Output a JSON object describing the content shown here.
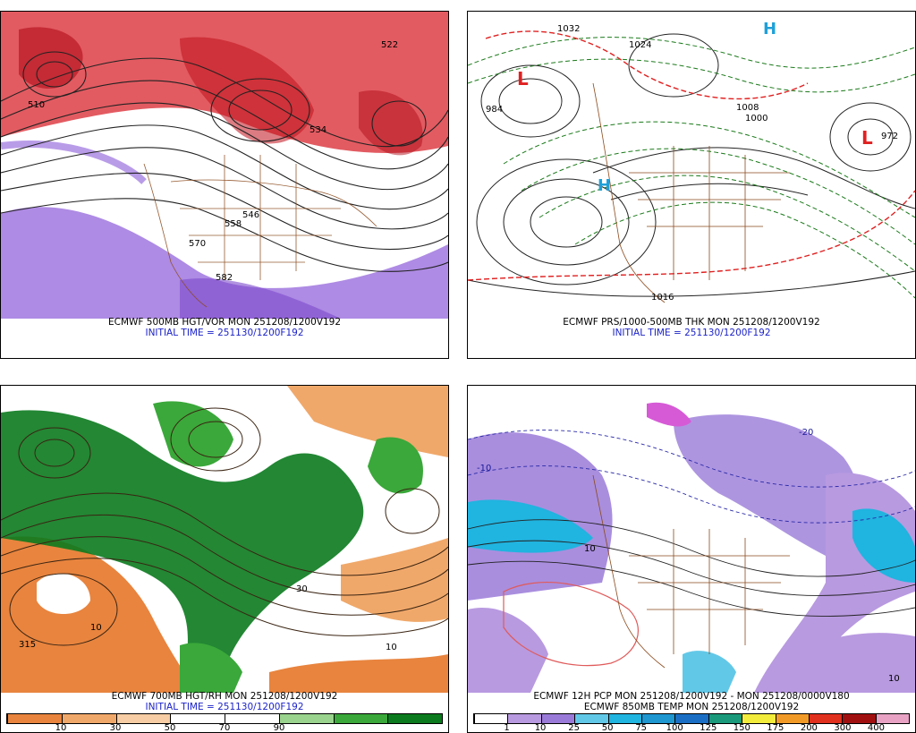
{
  "panels": [
    {
      "id": "500mb",
      "title": "ECMWF 500MB HGT/VOR MON 251208/1200V192",
      "subtitle": "INITIAL TIME = 251130/1200F192",
      "labels": [
        "510",
        "546",
        "558",
        "570",
        "582",
        "522",
        "534"
      ]
    },
    {
      "id": "prs",
      "title": "ECMWF PRS/1000-500MB THK MON 251208/1200V192",
      "subtitle": "INITIAL TIME = 251130/1200F192",
      "labels": [
        "1032",
        "1024",
        "1008",
        "1000",
        "984",
        "1016",
        "972",
        "L",
        "H"
      ]
    },
    {
      "id": "700mb",
      "title": "ECMWF 700MB HGT/RH MON 251208/1200V192",
      "subtitle": "INITIAL TIME = 251130/1200F192",
      "labels": [
        "315",
        "10",
        "10",
        "30"
      ],
      "colorbar": {
        "colors": [
          "#e8843e",
          "#f0a86a",
          "#f6cda4",
          "#ffffff",
          "#ffffff",
          "#9ad38e",
          "#3aa83a",
          "#0b7a1e"
        ],
        "ticks": [
          "10",
          "30",
          "50",
          "70",
          "90"
        ]
      }
    },
    {
      "id": "pcp",
      "title": "ECMWF 12H PCP MON 251208/1200V192 - MON 251208/0000V180",
      "subtitle": "ECMWF 850MB TEMP MON 251208/1200V192",
      "labels": [
        "-10",
        "10",
        "-20",
        "10"
      ],
      "colorbar": {
        "colors": [
          "#ffffff",
          "#b89ae0",
          "#9a7ad8",
          "#62c8e8",
          "#20b4e0",
          "#1e96d0",
          "#1a6fc4",
          "#1a9a7a",
          "#f2ec3c",
          "#f29a28",
          "#e0301e",
          "#a01010",
          "#e7a2c4"
        ],
        "ticks": [
          "1",
          "10",
          "25",
          "50",
          "75",
          "100",
          "125",
          "150",
          "175",
          "200",
          "300",
          "400"
        ]
      }
    }
  ]
}
